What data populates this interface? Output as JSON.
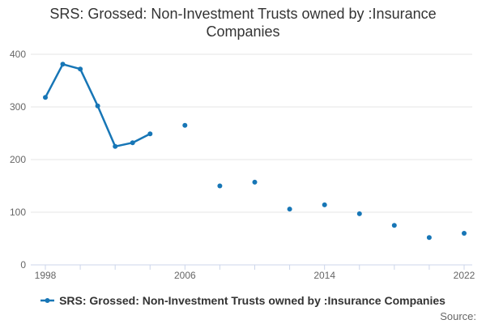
{
  "title": "SRS: Grossed: Non-Investment Trusts owned by :Insurance Companies",
  "legend": {
    "label": "SRS: Grossed: Non-Investment Trusts owned by :Insurance Companies"
  },
  "footer": {
    "source": "Source:"
  },
  "colors": {
    "series": "#1776b6",
    "grid": "#e6e6e6",
    "axis": "#ccd6eb",
    "tick_label": "#666666",
    "title_text": "#333333",
    "legend_text": "#333333",
    "source_text": "#666666"
  },
  "chart_data": {
    "type": "line",
    "title": "SRS: Grossed: Non-Investment Trusts owned by :Insurance Companies",
    "xlabel": "",
    "ylabel": "",
    "xlim": [
      1998,
      2022
    ],
    "ylim": [
      0,
      400
    ],
    "yticks": [
      0,
      100,
      200,
      300,
      400
    ],
    "xticks_labeled": [
      1998,
      2006,
      2014,
      2022
    ],
    "xtick_interval": 2,
    "grid": "horizontal",
    "legend_position": "bottom-center",
    "marker": "circle",
    "series": [
      {
        "name": "SRS: Grossed: Non-Investment Trusts owned by :Insurance Companies",
        "points": [
          {
            "year": 1998,
            "value": 318
          },
          {
            "year": 1999,
            "value": 381
          },
          {
            "year": 2000,
            "value": 372
          },
          {
            "year": 2001,
            "value": 302
          },
          {
            "year": 2002,
            "value": 225
          },
          {
            "year": 2003,
            "value": 232
          },
          {
            "year": 2004,
            "value": 249
          },
          {
            "year": 2006,
            "value": 265
          },
          {
            "year": 2008,
            "value": 150
          },
          {
            "year": 2010,
            "value": 157
          },
          {
            "year": 2012,
            "value": 106
          },
          {
            "year": 2014,
            "value": 114
          },
          {
            "year": 2016,
            "value": 97
          },
          {
            "year": 2018,
            "value": 75
          },
          {
            "year": 2020,
            "value": 52
          },
          {
            "year": 2022,
            "value": 60
          }
        ]
      }
    ]
  }
}
